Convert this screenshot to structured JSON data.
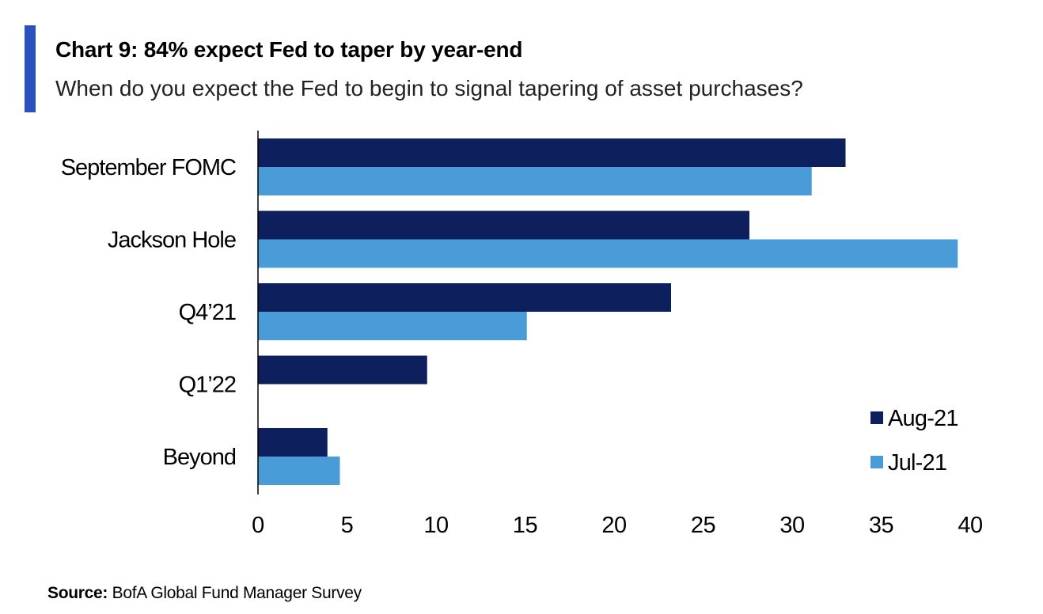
{
  "header": {
    "title": "Chart 9: 84% expect Fed to taper by year-end",
    "subtitle": "When do you expect the Fed to begin to signal tapering of asset purchases?"
  },
  "footer": {
    "source_label": "Source:",
    "source_text": "BofA Global Fund Manager Survey"
  },
  "colors": {
    "accent": "#2a52be",
    "aug21": "#0d1f5c",
    "jul21": "#4a9cd9"
  },
  "chart_data": {
    "type": "bar",
    "orientation": "horizontal",
    "categories": [
      "September FOMC",
      "Jackson Hole",
      "Q4’21",
      "Q1’22",
      "Beyond"
    ],
    "series": [
      {
        "name": "Aug-21",
        "color": "#0d1f5c",
        "values": [
          33,
          27.6,
          23.2,
          9.5,
          3.9
        ]
      },
      {
        "name": "Jul-21",
        "color": "#4a9cd9",
        "values": [
          31.1,
          39.3,
          15.1,
          0,
          4.6
        ]
      }
    ],
    "xlim": [
      0,
      40
    ],
    "xticks": [
      0,
      5,
      10,
      15,
      20,
      25,
      30,
      35,
      40
    ],
    "xlabel": "",
    "ylabel": "",
    "grid": false,
    "legend": "bottom-right"
  }
}
